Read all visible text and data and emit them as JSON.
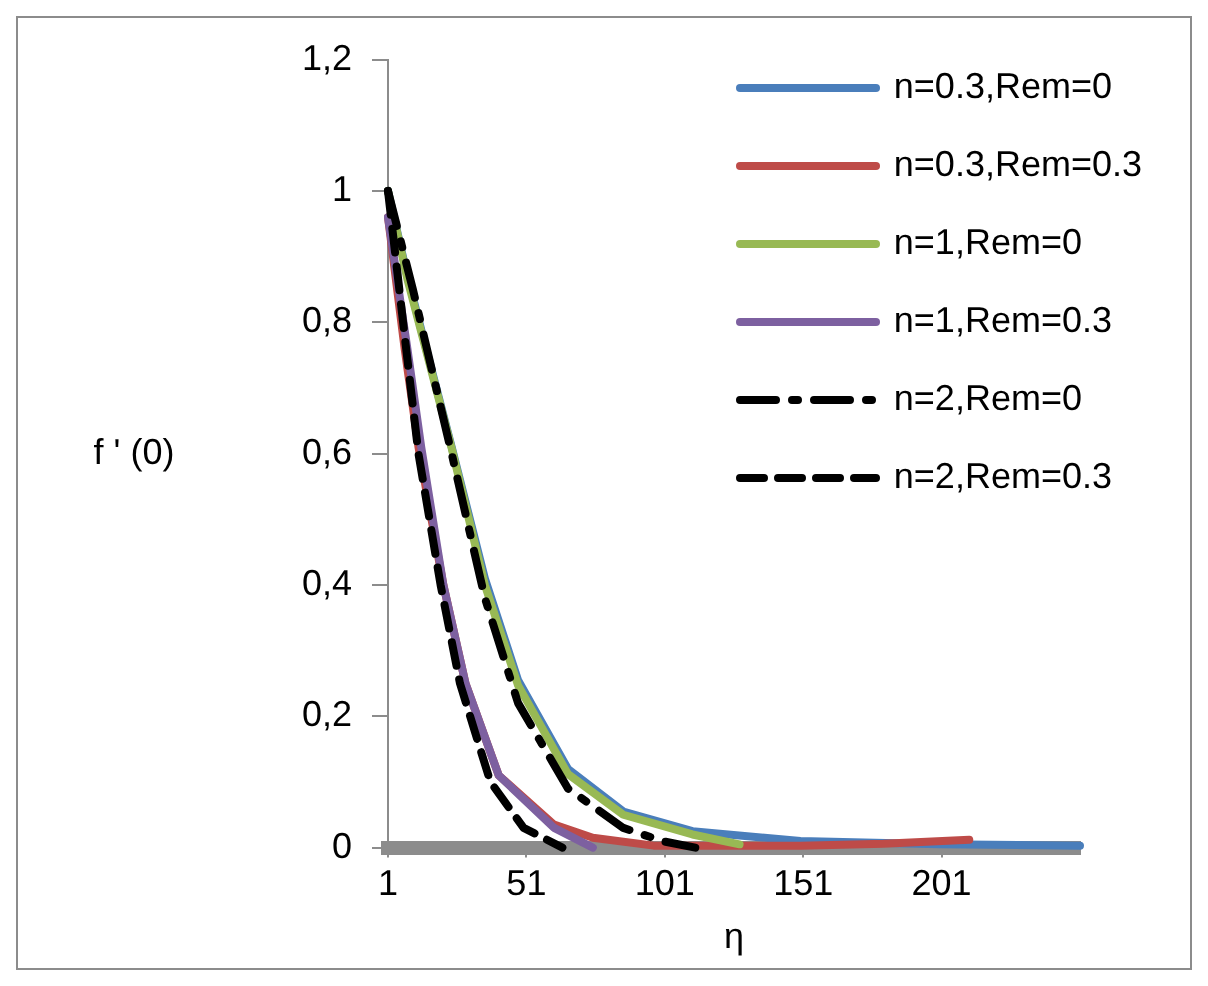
{
  "chart_data": {
    "type": "line",
    "xlabel": "η",
    "ylabel": "f ' (0)",
    "xlim": [
      1,
      251
    ],
    "xticks": [
      1,
      51,
      101,
      151,
      201
    ],
    "ylim": [
      0,
      1.2
    ],
    "yticks": [
      {
        "value": 0,
        "label": "0"
      },
      {
        "value": 0.2,
        "label": "0,2"
      },
      {
        "value": 0.4,
        "label": "0,4"
      },
      {
        "value": 0.6,
        "label": "0,6"
      },
      {
        "value": 0.8,
        "label": "0,8"
      },
      {
        "value": 1,
        "label": "1"
      },
      {
        "value": 1.2,
        "label": "1,2"
      }
    ],
    "grid": false,
    "legend": "top right",
    "marker": "none",
    "series": [
      {
        "name": "n=0.3,Rem=0",
        "color": "#4a7ebb",
        "line_style": "solid",
        "x": [
          1,
          8,
          24,
          36,
          48,
          66,
          86,
          111,
          150,
          200,
          251
        ],
        "values": [
          1,
          0.87,
          0.61,
          0.41,
          0.255,
          0.12,
          0.055,
          0.025,
          0.01,
          0.005,
          0.003
        ]
      },
      {
        "name": "n=0.3,Rem=0.3",
        "color": "#be4b48",
        "line_style": "solid",
        "x": [
          1,
          7,
          12,
          21,
          29,
          41,
          61,
          75,
          97,
          150,
          180,
          211
        ],
        "values": [
          0.96,
          0.76,
          0.61,
          0.4,
          0.25,
          0.11,
          0.035,
          0.015,
          0.003,
          0.003,
          0.006,
          0.012
        ]
      },
      {
        "name": "n=1,Rem=0",
        "color": "#98b954",
        "line_style": "solid",
        "x": [
          1,
          8,
          24,
          36,
          48,
          66,
          86,
          111,
          128
        ],
        "values": [
          1,
          0.866,
          0.608,
          0.4,
          0.247,
          0.112,
          0.05,
          0.02,
          0.005
        ]
      },
      {
        "name": "n=1,Rem=0.3",
        "color": "#7d60a0",
        "line_style": "solid",
        "x": [
          1,
          8,
          13,
          21,
          29,
          41,
          61,
          75
        ],
        "values": [
          0.96,
          0.76,
          0.61,
          0.4,
          0.25,
          0.11,
          0.03,
          0
        ]
      },
      {
        "name": "n=2,Rem=0",
        "color": "#000000",
        "line_style": "dashdot",
        "x": [
          1,
          10,
          24,
          36,
          48,
          66,
          86,
          100,
          112
        ],
        "values": [
          1,
          0.85,
          0.6,
          0.38,
          0.22,
          0.09,
          0.03,
          0.01,
          0
        ]
      },
      {
        "name": "n=2,Rem=0.3",
        "color": "#000000",
        "line_style": "dashed",
        "x": [
          1,
          7,
          12,
          20,
          27,
          38,
          50,
          64
        ],
        "values": [
          1,
          0.78,
          0.6,
          0.4,
          0.25,
          0.1,
          0.03,
          0
        ]
      }
    ]
  }
}
